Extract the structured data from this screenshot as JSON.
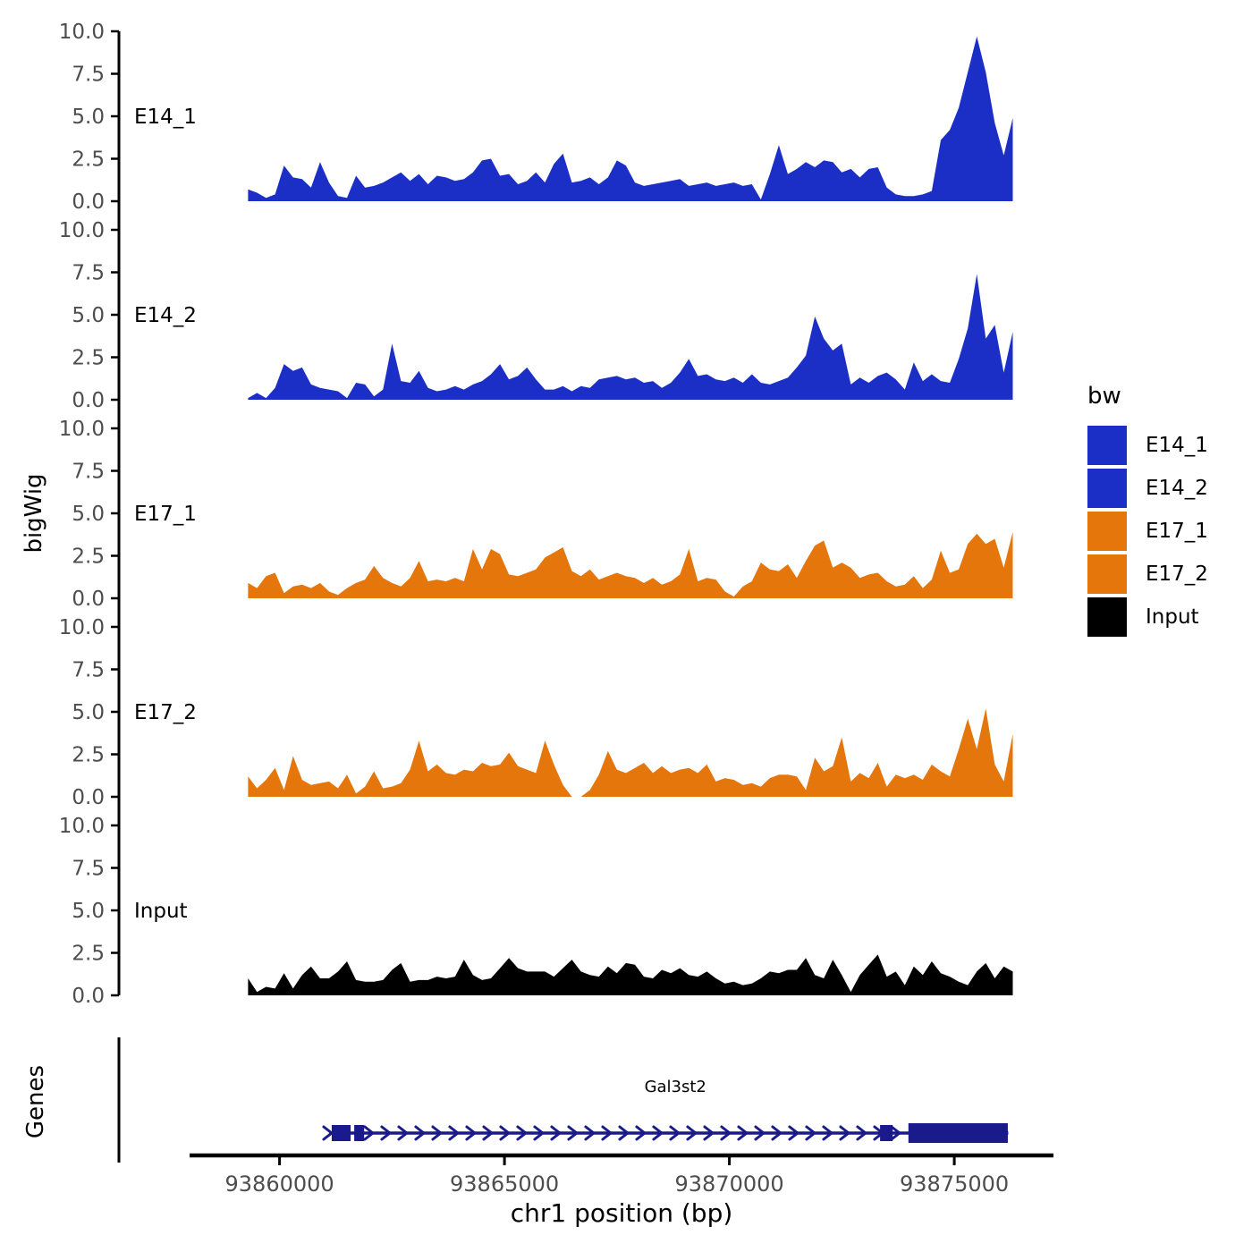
{
  "y_axis": {
    "label": "bigWig",
    "ticks": [
      {
        "value": 0,
        "label": "0.0"
      },
      {
        "value": 2.5,
        "label": "2.5"
      },
      {
        "value": 5,
        "label": "5.0"
      },
      {
        "value": 7.5,
        "label": "7.5"
      },
      {
        "value": 10,
        "label": "10.0"
      }
    ],
    "range": [
      0,
      10
    ],
    "tick_color": "#4d4d4d"
  },
  "x_axis": {
    "label": "chr1 position (bp)",
    "ticks": [
      {
        "bp": 93860000,
        "label": "93860000"
      },
      {
        "bp": 93865000,
        "label": "93865000"
      },
      {
        "bp": 93870000,
        "label": "93870000"
      },
      {
        "bp": 93875000,
        "label": "93875000"
      }
    ],
    "tick_color": "#4d4d4d"
  },
  "genes_panel": {
    "label": "Genes",
    "gene": {
      "name": "Gal3st2",
      "strand": "+",
      "start_bp": 93861100,
      "end_bp": 93876200,
      "label_bp": 93868800,
      "exons_bp": [
        [
          93861160,
          93861580
        ],
        [
          93861660,
          93861880
        ],
        [
          93873350,
          93873630
        ],
        [
          93873980,
          93876190
        ]
      ],
      "color": "#1A1A8C"
    }
  },
  "legend": {
    "title": "bw",
    "items": [
      {
        "label": "E14_1",
        "color": "#1B2FC7"
      },
      {
        "label": "E14_2",
        "color": "#1B2FC7"
      },
      {
        "label": "E17_1",
        "color": "#E4760C"
      },
      {
        "label": "E17_2",
        "color": "#E4760C"
      },
      {
        "label": "Input",
        "color": "#000000"
      }
    ]
  },
  "chart_data": {
    "type": "area",
    "title": "",
    "xlabel": "chr1 position (bp)",
    "ylabel": "bigWig",
    "ylim": [
      0,
      10
    ],
    "x_start_bp": 93859300,
    "x_step_bp": 200,
    "n_points": 86,
    "x_range_bp": [
      93859300,
      93876300
    ],
    "grid": false,
    "legend_position": "right",
    "series": [
      {
        "name": "E14_1",
        "color": "#1B2FC7",
        "values": [
          0.7,
          0.5,
          0.2,
          0.4,
          2.1,
          1.4,
          1.3,
          0.8,
          2.3,
          1.1,
          0.3,
          0.2,
          1.5,
          0.8,
          0.9,
          1.1,
          1.4,
          1.7,
          1.2,
          1.6,
          1.0,
          1.5,
          1.4,
          1.2,
          1.3,
          1.7,
          2.4,
          2.5,
          1.5,
          1.6,
          1.0,
          1.2,
          1.7,
          1.1,
          2.2,
          2.8,
          1.1,
          1.2,
          1.4,
          1.0,
          1.4,
          2.4,
          2.1,
          1.1,
          0.9,
          1.0,
          1.1,
          1.2,
          1.3,
          0.9,
          1.0,
          1.1,
          0.9,
          1.0,
          1.1,
          0.9,
          1.0,
          0.1,
          1.6,
          3.3,
          1.6,
          1.9,
          2.3,
          2.0,
          2.4,
          2.3,
          1.7,
          1.9,
          1.4,
          1.9,
          2.0,
          0.8,
          0.4,
          0.3,
          0.3,
          0.4,
          0.6,
          3.6,
          4.2,
          5.5,
          7.6,
          9.7,
          7.6,
          4.6,
          2.7,
          4.9
        ]
      },
      {
        "name": "E14_2",
        "color": "#1B2FC7",
        "values": [
          0.1,
          0.4,
          0.1,
          0.7,
          2.1,
          1.7,
          1.9,
          0.9,
          0.7,
          0.6,
          0.5,
          0.1,
          1.0,
          0.9,
          0.2,
          0.6,
          3.3,
          1.1,
          1.0,
          1.7,
          0.7,
          0.5,
          0.6,
          0.8,
          0.6,
          0.9,
          1.1,
          1.5,
          2.1,
          1.2,
          1.4,
          1.9,
          1.2,
          0.6,
          0.6,
          0.8,
          0.5,
          0.8,
          0.7,
          1.2,
          1.3,
          1.4,
          1.2,
          1.3,
          1.0,
          1.1,
          0.7,
          1.0,
          1.6,
          2.4,
          1.4,
          1.5,
          1.2,
          1.1,
          1.3,
          1.0,
          1.5,
          1.0,
          0.9,
          1.1,
          1.3,
          1.9,
          2.6,
          4.9,
          3.6,
          2.9,
          3.3,
          0.9,
          1.3,
          1.0,
          1.4,
          1.6,
          1.2,
          0.6,
          2.2,
          1.1,
          1.5,
          1.1,
          1.0,
          2.4,
          4.2,
          7.4,
          3.6,
          4.4,
          1.6,
          4.0
        ]
      },
      {
        "name": "E17_1",
        "color": "#E4760C",
        "values": [
          0.9,
          0.6,
          1.3,
          1.5,
          0.3,
          0.7,
          0.8,
          0.6,
          0.9,
          0.4,
          0.2,
          0.6,
          0.9,
          1.1,
          1.9,
          1.2,
          0.9,
          0.7,
          1.2,
          2.2,
          1.0,
          1.1,
          1.0,
          1.2,
          1.0,
          2.9,
          1.7,
          2.9,
          2.6,
          1.4,
          1.3,
          1.5,
          1.7,
          2.4,
          2.7,
          3.0,
          1.6,
          1.3,
          1.7,
          1.1,
          1.3,
          1.5,
          1.3,
          1.2,
          0.9,
          1.2,
          0.8,
          1.0,
          1.4,
          2.9,
          1.0,
          1.2,
          1.1,
          0.4,
          0.1,
          0.7,
          1.0,
          2.1,
          1.7,
          1.6,
          2.0,
          1.2,
          2.2,
          3.1,
          3.4,
          1.8,
          2.1,
          1.8,
          1.2,
          1.4,
          1.5,
          1.0,
          0.7,
          0.8,
          1.3,
          0.6,
          1.1,
          2.8,
          1.5,
          1.7,
          3.2,
          3.8,
          3.2,
          3.5,
          1.8,
          3.9
        ]
      },
      {
        "name": "E17_2",
        "color": "#E4760C",
        "values": [
          1.2,
          0.5,
          1.0,
          1.7,
          0.4,
          2.4,
          1.0,
          0.7,
          0.8,
          0.9,
          0.5,
          1.3,
          0.2,
          0.6,
          1.5,
          0.5,
          0.6,
          0.8,
          1.6,
          3.3,
          1.5,
          1.9,
          1.4,
          1.3,
          1.6,
          1.5,
          2.0,
          1.8,
          1.9,
          2.6,
          1.8,
          1.6,
          1.4,
          3.3,
          1.9,
          0.7,
          0.0,
          0.0,
          0.4,
          1.3,
          2.7,
          1.6,
          1.4,
          1.7,
          2.0,
          1.4,
          1.8,
          1.4,
          1.6,
          1.7,
          1.4,
          1.9,
          0.9,
          1.1,
          1.0,
          0.7,
          0.8,
          0.6,
          1.1,
          1.3,
          1.3,
          1.2,
          0.4,
          2.3,
          1.5,
          1.8,
          3.5,
          0.9,
          1.4,
          1.1,
          2.0,
          0.6,
          1.3,
          1.1,
          1.3,
          1.0,
          1.9,
          1.5,
          1.2,
          2.8,
          4.6,
          2.8,
          5.2,
          1.9,
          0.9,
          3.7
        ]
      },
      {
        "name": "Input",
        "color": "#000000",
        "values": [
          1.0,
          0.2,
          0.5,
          0.4,
          1.3,
          0.4,
          1.2,
          1.7,
          1.0,
          1.0,
          1.4,
          2.0,
          0.9,
          0.8,
          0.8,
          0.9,
          1.5,
          1.9,
          0.8,
          0.9,
          0.9,
          1.1,
          1.0,
          1.1,
          2.1,
          1.2,
          0.9,
          1.0,
          1.6,
          2.2,
          1.6,
          1.4,
          1.4,
          1.4,
          1.1,
          1.6,
          2.1,
          1.4,
          1.2,
          1.1,
          1.7,
          1.3,
          1.9,
          1.8,
          1.1,
          1.0,
          1.5,
          1.3,
          1.6,
          1.2,
          1.1,
          1.4,
          1.0,
          0.7,
          0.8,
          0.6,
          0.7,
          1.0,
          1.4,
          1.3,
          1.5,
          1.5,
          2.2,
          1.2,
          1.0,
          2.1,
          1.2,
          0.2,
          1.2,
          1.8,
          2.4,
          1.1,
          1.4,
          0.6,
          1.7,
          1.2,
          2.0,
          1.3,
          1.1,
          0.8,
          0.6,
          1.4,
          1.9,
          1.0,
          1.7,
          1.4
        ]
      }
    ]
  }
}
